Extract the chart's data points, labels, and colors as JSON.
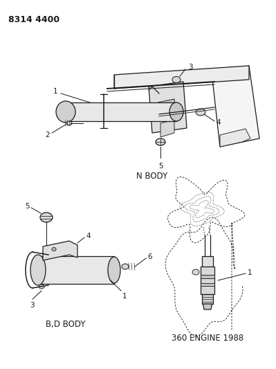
{
  "title": "8314 4400",
  "background_color": "#ffffff",
  "line_color": "#1a1a1a",
  "gray_fill": "#d8d8d8",
  "light_fill": "#f0f0f0",
  "section_labels": {
    "n_body": "N BODY",
    "bd_body": "B,D BODY",
    "engine": "360 ENGINE 1988"
  }
}
